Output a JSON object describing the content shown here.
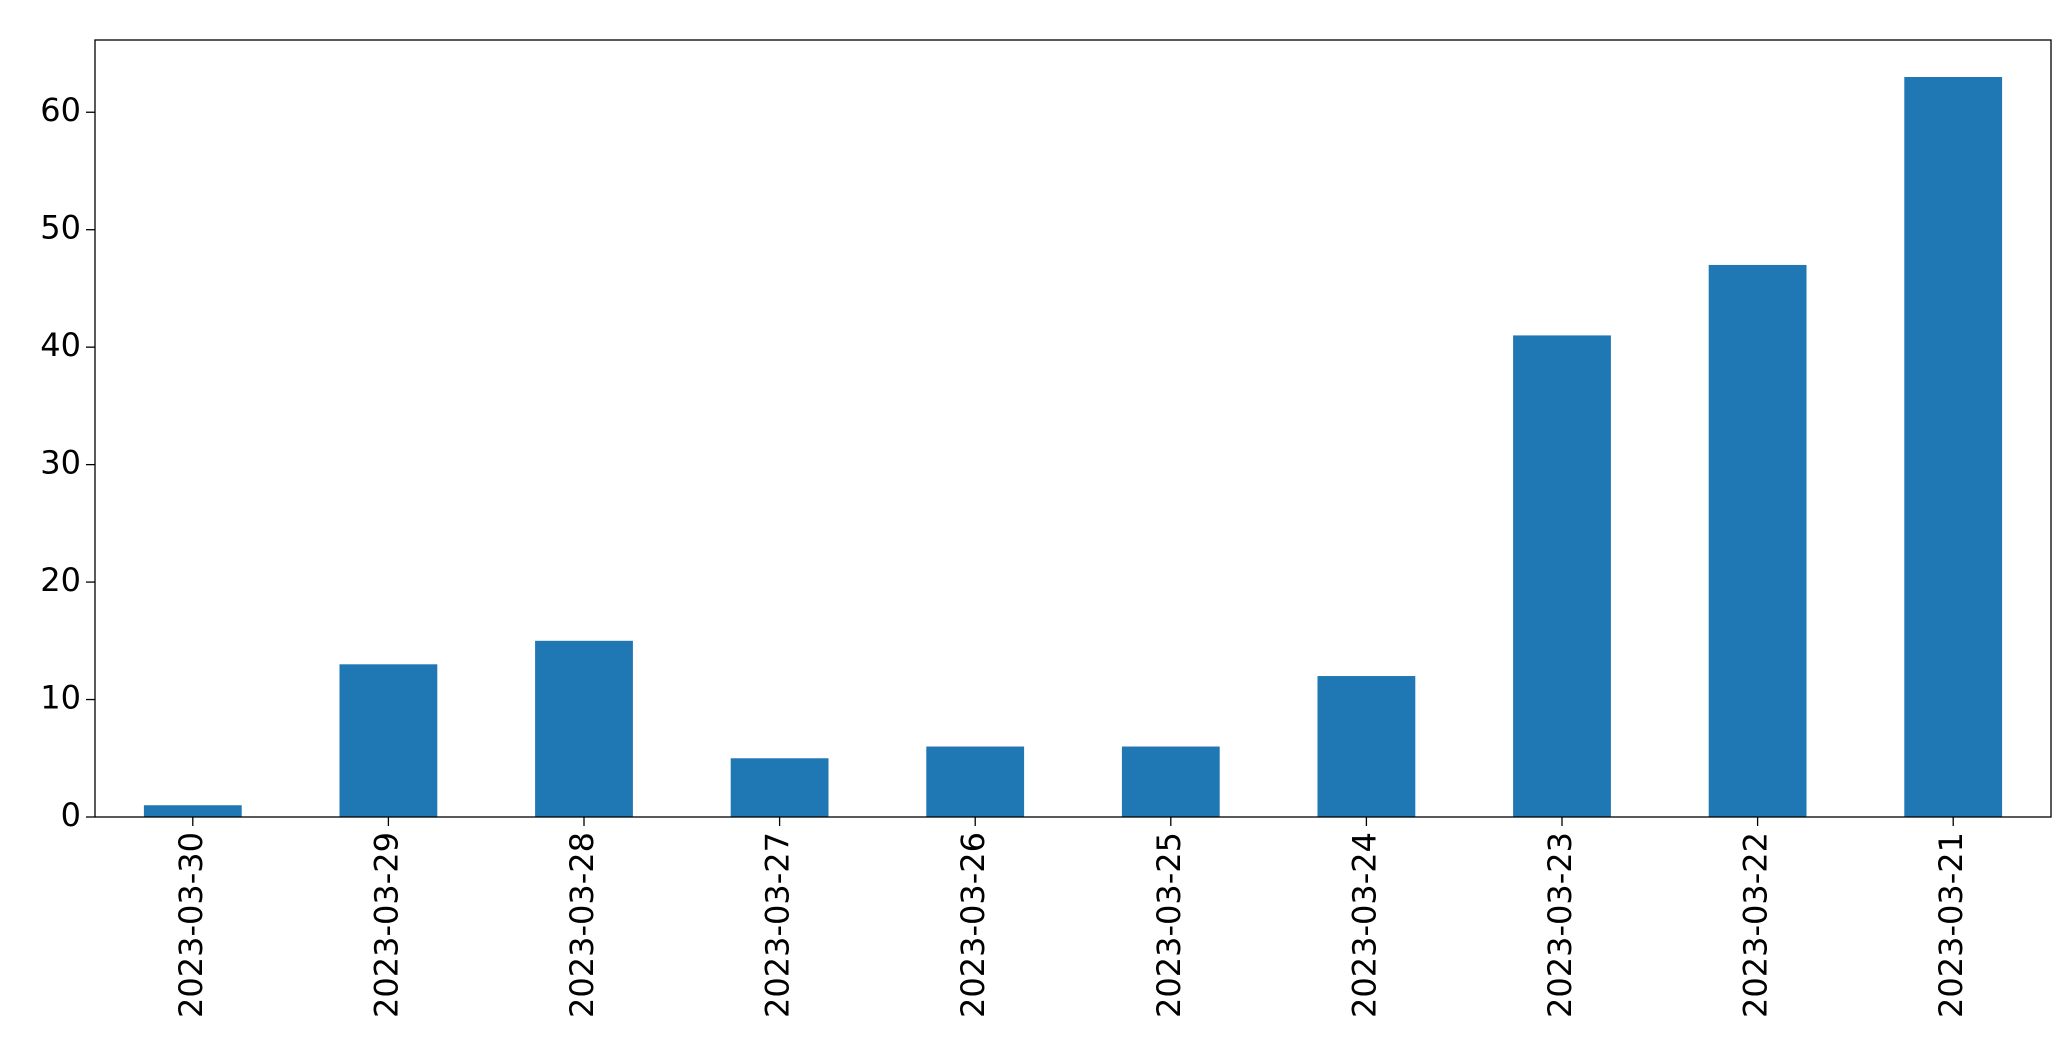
{
  "chart_data": {
    "type": "bar",
    "categories": [
      "2023-03-30",
      "2023-03-29",
      "2023-03-28",
      "2023-03-27",
      "2023-03-26",
      "2023-03-25",
      "2023-03-24",
      "2023-03-23",
      "2023-03-22",
      "2023-03-21"
    ],
    "values": [
      1,
      13,
      15,
      5,
      6,
      6,
      12,
      41,
      47,
      63
    ],
    "color": "#1f77b4",
    "ylim": [
      0,
      66.15
    ],
    "yticks": [
      0,
      10,
      20,
      30,
      40,
      50,
      60
    ],
    "grid": false
  }
}
